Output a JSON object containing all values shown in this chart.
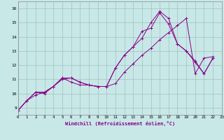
{
  "xlabel": "Windchill (Refroidissement éolien,°C)",
  "background_color": "#c8e8e8",
  "grid_color": "#a0c0c0",
  "line_color": "#880088",
  "xlim": [
    0,
    23
  ],
  "ylim": [
    8.5,
    16.5
  ],
  "xticks": [
    0,
    1,
    2,
    3,
    4,
    5,
    6,
    7,
    8,
    9,
    10,
    11,
    12,
    13,
    14,
    15,
    16,
    17,
    18,
    19,
    20,
    21,
    22,
    23
  ],
  "yticks": [
    9,
    10,
    11,
    12,
    13,
    14,
    15,
    16
  ],
  "series": [
    {
      "x": [
        0,
        1,
        2,
        3,
        4,
        5,
        6,
        7,
        8,
        9,
        10,
        11,
        12,
        13,
        14,
        15,
        16,
        17,
        18,
        19,
        20,
        21,
        22
      ],
      "y": [
        8.8,
        9.5,
        10.1,
        10.1,
        10.5,
        11.1,
        11.1,
        10.8,
        10.6,
        10.5,
        10.5,
        11.8,
        12.7,
        13.3,
        13.9,
        15.0,
        15.8,
        15.3,
        13.5,
        13.0,
        12.3,
        11.4,
        12.5
      ]
    },
    {
      "x": [
        0,
        1,
        2,
        3,
        4,
        5,
        6,
        7,
        8,
        9,
        10,
        11,
        12,
        13,
        14,
        15,
        16,
        17,
        18,
        19,
        20,
        21,
        22
      ],
      "y": [
        8.8,
        9.5,
        10.1,
        10.0,
        10.5,
        11.1,
        10.8,
        10.6,
        10.6,
        10.5,
        10.5,
        11.8,
        12.7,
        13.3,
        14.4,
        14.6,
        15.7,
        14.9,
        13.5,
        13.0,
        12.2,
        11.4,
        12.5
      ]
    },
    {
      "x": [
        0,
        1,
        2,
        3,
        4,
        5,
        6,
        7,
        8,
        9,
        10,
        11,
        12,
        13,
        14,
        15,
        16,
        17,
        18,
        19,
        20,
        21,
        22
      ],
      "y": [
        8.8,
        9.5,
        9.9,
        10.1,
        10.5,
        11.0,
        11.1,
        10.8,
        10.6,
        10.5,
        10.5,
        10.7,
        11.5,
        12.1,
        12.7,
        13.2,
        13.8,
        14.3,
        14.8,
        15.3,
        11.4,
        12.5,
        12.6
      ]
    }
  ]
}
